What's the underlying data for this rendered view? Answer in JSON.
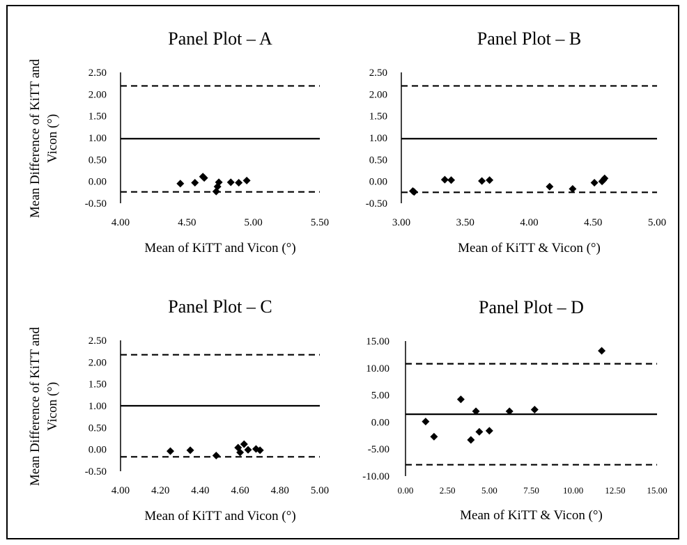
{
  "figure": {
    "ylabel_lines": [
      "Mean Difference of KiTT and",
      "Vicon (°)"
    ]
  },
  "chart_data": [
    {
      "type": "scatter",
      "title": "Panel Plot – A",
      "xlabel": "Mean of KiTT and Vicon (°)",
      "ylabel": "Mean Difference of KiTT and Vicon (°)",
      "xlim": [
        4.0,
        5.5
      ],
      "ylim": [
        -0.5,
        2.5
      ],
      "xticks": [
        "4.00",
        "4.50",
        "5.00",
        "5.50"
      ],
      "yticks": [
        "2.50",
        "2.00",
        "1.50",
        "1.00",
        "0.50",
        "0.00",
        "-0.50"
      ],
      "xtick_values": [
        4.0,
        4.5,
        5.0,
        5.5
      ],
      "ytick_values": [
        2.5,
        2.0,
        1.5,
        1.0,
        0.5,
        0.0,
        -0.5
      ],
      "mean_line": 0.98,
      "loa_upper": 2.19,
      "loa_lower": -0.24,
      "points": [
        [
          4.45,
          -0.05
        ],
        [
          4.56,
          -0.03
        ],
        [
          4.62,
          0.11
        ],
        [
          4.63,
          0.08
        ],
        [
          4.72,
          -0.23
        ],
        [
          4.73,
          -0.12
        ],
        [
          4.74,
          -0.02
        ],
        [
          4.83,
          -0.02
        ],
        [
          4.89,
          -0.03
        ],
        [
          4.95,
          0.02
        ]
      ]
    },
    {
      "type": "scatter",
      "title": "Panel Plot – B",
      "xlabel": "Mean of KiTT & Vicon (°)",
      "ylabel": "",
      "xlim": [
        3.0,
        5.0
      ],
      "ylim": [
        -0.5,
        2.5
      ],
      "xticks": [
        "3.00",
        "3.50",
        "4.00",
        "4.50",
        "5.00"
      ],
      "yticks": [
        "2.50",
        "2.00",
        "1.50",
        "1.00",
        "0.50",
        "0.00",
        "-0.50"
      ],
      "xtick_values": [
        3.0,
        3.5,
        4.0,
        4.5,
        5.0
      ],
      "ytick_values": [
        2.5,
        2.0,
        1.5,
        1.0,
        0.5,
        0.0,
        -0.5
      ],
      "mean_line": 0.98,
      "loa_upper": 2.19,
      "loa_lower": -0.25,
      "points": [
        [
          3.09,
          -0.22
        ],
        [
          3.1,
          -0.24
        ],
        [
          3.34,
          0.04
        ],
        [
          3.39,
          0.03
        ],
        [
          3.63,
          0.01
        ],
        [
          3.69,
          0.03
        ],
        [
          4.16,
          -0.12
        ],
        [
          4.34,
          -0.17
        ],
        [
          4.51,
          -0.03
        ],
        [
          4.57,
          0.0
        ],
        [
          4.59,
          0.07
        ],
        [
          4.58,
          0.03
        ]
      ]
    },
    {
      "type": "scatter",
      "title": "Panel Plot – C",
      "xlabel": "Mean of KiTT and Vicon (°)",
      "ylabel": "Mean Difference of KiTT and Vicon (°)",
      "xlim": [
        4.0,
        5.0
      ],
      "ylim": [
        -0.5,
        2.5
      ],
      "xticks": [
        "4.00",
        "4.20",
        "4.40",
        "4.60",
        "4.80",
        "5.00"
      ],
      "yticks": [
        "2.50",
        "2.00",
        "1.50",
        "1.00",
        "0.50",
        "0.00",
        "-0.50"
      ],
      "xtick_values": [
        4.0,
        4.2,
        4.4,
        4.6,
        4.8,
        5.0
      ],
      "ytick_values": [
        2.5,
        2.0,
        1.5,
        1.0,
        0.5,
        0.0,
        -0.5
      ],
      "mean_line": 1.0,
      "loa_upper": 2.17,
      "loa_lower": -0.17,
      "points": [
        [
          4.25,
          -0.04
        ],
        [
          4.35,
          -0.02
        ],
        [
          4.48,
          -0.14
        ],
        [
          4.59,
          0.04
        ],
        [
          4.6,
          -0.07
        ],
        [
          4.62,
          0.12
        ],
        [
          4.64,
          -0.01
        ],
        [
          4.68,
          0.01
        ],
        [
          4.7,
          -0.02
        ]
      ]
    },
    {
      "type": "scatter",
      "title": "Panel Plot – D",
      "xlabel": "Mean of KiTT & Vicon (°)",
      "ylabel": "",
      "xlim": [
        0.0,
        15.0
      ],
      "ylim": [
        -10.0,
        15.0
      ],
      "xticks": [
        "0.00",
        "2.50",
        "5.00",
        "7.50",
        "10.00",
        "12.50",
        "15.00"
      ],
      "yticks": [
        "15.00",
        "10.00",
        "5.00",
        "0.00",
        "-5.00",
        "-10.00"
      ],
      "xtick_values": [
        0.0,
        2.5,
        5.0,
        7.5,
        10.0,
        12.5,
        15.0
      ],
      "ytick_values": [
        15.0,
        10.0,
        5.0,
        0.0,
        -5.0,
        -10.0
      ],
      "mean_line": 1.45,
      "loa_upper": 10.8,
      "loa_lower": -7.9,
      "points": [
        [
          1.2,
          0.1
        ],
        [
          1.7,
          -2.7
        ],
        [
          3.3,
          4.2
        ],
        [
          4.2,
          2.0
        ],
        [
          3.9,
          -3.3
        ],
        [
          4.4,
          -1.8
        ],
        [
          5.0,
          -1.6
        ],
        [
          6.2,
          2.0
        ],
        [
          7.7,
          2.3
        ],
        [
          11.7,
          13.2
        ]
      ]
    }
  ]
}
